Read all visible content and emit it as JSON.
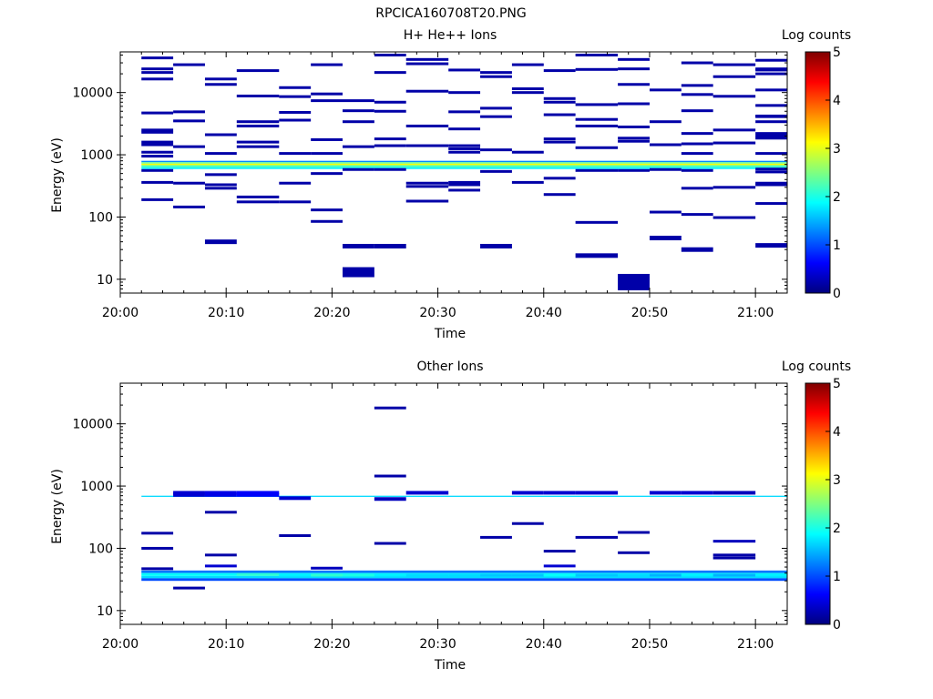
{
  "figure_title": "RPCICA160708T20.PNG",
  "chart_data": [
    {
      "type": "heatmap",
      "title": "H+ He++ Ions",
      "xlabel": "Time",
      "ylabel": "Energy (eV)",
      "x_ticks": [
        "20:00",
        "20:10",
        "20:20",
        "20:30",
        "20:40",
        "20:50",
        "21:00"
      ],
      "x_range": [
        "20:00",
        "21:03"
      ],
      "y_scale": "log",
      "y_ticks": [
        "10",
        "100",
        "1000",
        "10000"
      ],
      "y_range": [
        6,
        45000
      ],
      "colorbar": {
        "label": "Log counts",
        "ticks": [
          "0",
          "1",
          "2",
          "3",
          "4",
          "5"
        ],
        "range": [
          0,
          5
        ]
      },
      "scan_times": [
        "20:02",
        "20:05",
        "20:08",
        "20:11",
        "20:15",
        "20:18",
        "20:21",
        "20:24",
        "20:27",
        "20:31",
        "20:34",
        "20:37",
        "20:40",
        "20:43",
        "20:47",
        "20:50",
        "20:53",
        "20:56",
        "21:00"
      ],
      "bands": [
        {
          "energy": [
            760,
            800
          ],
          "level": 1.3
        },
        {
          "energy": [
            720,
            760
          ],
          "level": 2.4
        },
        {
          "energy": [
            690,
            720
          ],
          "level": 3.1
        },
        {
          "energy": [
            660,
            690
          ],
          "level": 2.6
        },
        {
          "energy": [
            620,
            660
          ],
          "level": 2.1
        },
        {
          "energy": [
            590,
            620
          ],
          "level": 1.8
        }
      ],
      "cells": [
        [
          0,
          36000,
          0.2
        ],
        [
          0,
          24000,
          0.2
        ],
        [
          0,
          21000,
          0.2
        ],
        [
          0,
          16500,
          0.2
        ],
        [
          0,
          4700,
          0.2
        ],
        [
          0,
          2500,
          0.2
        ],
        [
          0,
          2300,
          0.2
        ],
        [
          0,
          1600,
          0.2
        ],
        [
          0,
          1450,
          0.2
        ],
        [
          0,
          1100,
          0.2
        ],
        [
          0,
          950,
          0.2
        ],
        [
          0,
          560,
          0.2
        ],
        [
          0,
          360,
          0.2
        ],
        [
          0,
          190,
          0.2
        ],
        [
          1,
          28000,
          0.2
        ],
        [
          1,
          4900,
          0.2
        ],
        [
          1,
          3500,
          0.2
        ],
        [
          1,
          1350,
          0.2
        ],
        [
          1,
          350,
          0.2
        ],
        [
          1,
          145,
          0.2
        ],
        [
          2,
          16500,
          0.2
        ],
        [
          2,
          13500,
          0.2
        ],
        [
          2,
          2100,
          0.2
        ],
        [
          2,
          1050,
          0.2
        ],
        [
          2,
          480,
          0.2
        ],
        [
          2,
          330,
          0.2
        ],
        [
          2,
          290,
          0.2
        ],
        [
          2,
          40,
          0.2
        ],
        [
          3,
          22500,
          0.2
        ],
        [
          3,
          8800,
          0.2
        ],
        [
          3,
          3400,
          0.2
        ],
        [
          3,
          2900,
          0.2
        ],
        [
          3,
          1600,
          0.2
        ],
        [
          3,
          1350,
          0.2
        ],
        [
          3,
          210,
          0.2
        ],
        [
          3,
          175,
          0.2
        ],
        [
          4,
          12000,
          0.2
        ],
        [
          4,
          8600,
          0.2
        ],
        [
          4,
          4800,
          0.2
        ],
        [
          4,
          3600,
          0.2
        ],
        [
          4,
          1050,
          0.2
        ],
        [
          4,
          350,
          0.2
        ],
        [
          4,
          175,
          0.2
        ],
        [
          5,
          28000,
          0.2
        ],
        [
          5,
          9500,
          0.2
        ],
        [
          5,
          7400,
          0.2
        ],
        [
          5,
          1750,
          0.2
        ],
        [
          5,
          1050,
          0.2
        ],
        [
          5,
          500,
          0.2
        ],
        [
          5,
          130,
          0.2
        ],
        [
          5,
          85,
          0.2
        ],
        [
          6,
          7400,
          0.2
        ],
        [
          6,
          5100,
          0.2
        ],
        [
          6,
          3400,
          0.2
        ],
        [
          6,
          1350,
          0.2
        ],
        [
          6,
          580,
          0.2
        ],
        [
          6,
          34,
          0.2
        ],
        [
          6,
          13,
          0.2
        ],
        [
          7,
          40000,
          0.2
        ],
        [
          7,
          21000,
          0.2
        ],
        [
          7,
          7000,
          0.2
        ],
        [
          7,
          5000,
          0.2
        ],
        [
          7,
          1800,
          0.2
        ],
        [
          7,
          1400,
          0.2
        ],
        [
          7,
          580,
          0.2
        ],
        [
          7,
          34,
          0.2
        ],
        [
          8,
          34000,
          0.2
        ],
        [
          8,
          29000,
          0.2
        ],
        [
          8,
          10500,
          0.2
        ],
        [
          8,
          2900,
          0.2
        ],
        [
          8,
          1400,
          0.2
        ],
        [
          8,
          350,
          0.2
        ],
        [
          8,
          310,
          0.2
        ],
        [
          8,
          180,
          0.2
        ],
        [
          9,
          23000,
          0.2
        ],
        [
          9,
          10000,
          0.2
        ],
        [
          9,
          4900,
          0.2
        ],
        [
          9,
          2600,
          0.2
        ],
        [
          9,
          1400,
          0.2
        ],
        [
          9,
          1250,
          0.2
        ],
        [
          9,
          1100,
          0.2
        ],
        [
          9,
          360,
          0.2
        ],
        [
          9,
          330,
          0.2
        ],
        [
          9,
          270,
          0.2
        ],
        [
          10,
          21000,
          0.2
        ],
        [
          10,
          18000,
          0.2
        ],
        [
          10,
          5600,
          0.2
        ],
        [
          10,
          4100,
          0.2
        ],
        [
          10,
          1200,
          0.2
        ],
        [
          10,
          540,
          0.2
        ],
        [
          10,
          34,
          0.2
        ],
        [
          11,
          28000,
          0.2
        ],
        [
          11,
          11500,
          0.2
        ],
        [
          11,
          10000,
          0.2
        ],
        [
          11,
          1100,
          0.2
        ],
        [
          11,
          360,
          0.2
        ],
        [
          12,
          22500,
          0.2
        ],
        [
          12,
          8000,
          0.2
        ],
        [
          12,
          7000,
          0.2
        ],
        [
          12,
          4400,
          0.2
        ],
        [
          12,
          1800,
          0.2
        ],
        [
          12,
          1600,
          0.2
        ],
        [
          12,
          420,
          0.2
        ],
        [
          12,
          230,
          0.2
        ],
        [
          13,
          40000,
          0.2
        ],
        [
          13,
          23500,
          0.2
        ],
        [
          13,
          6400,
          0.2
        ],
        [
          13,
          3700,
          0.2
        ],
        [
          13,
          2900,
          0.2
        ],
        [
          13,
          1300,
          0.2
        ],
        [
          13,
          560,
          0.2
        ],
        [
          13,
          82,
          0.2
        ],
        [
          13,
          24,
          0.2
        ],
        [
          14,
          34000,
          0.2
        ],
        [
          14,
          24000,
          0.2
        ],
        [
          14,
          13500,
          0.2
        ],
        [
          14,
          6600,
          0.2
        ],
        [
          14,
          2800,
          0.2
        ],
        [
          14,
          1850,
          0.2
        ],
        [
          14,
          1650,
          0.2
        ],
        [
          14,
          560,
          0.2
        ],
        [
          14,
          9,
          0.2
        ],
        [
          15,
          11000,
          0.2
        ],
        [
          15,
          3400,
          0.2
        ],
        [
          15,
          1450,
          0.2
        ],
        [
          15,
          580,
          0.2
        ],
        [
          15,
          120,
          0.2
        ],
        [
          15,
          46,
          0.2
        ],
        [
          16,
          30000,
          0.2
        ],
        [
          16,
          13000,
          0.2
        ],
        [
          16,
          9300,
          0.2
        ],
        [
          16,
          5100,
          0.2
        ],
        [
          16,
          2200,
          0.2
        ],
        [
          16,
          1500,
          0.2
        ],
        [
          16,
          1050,
          0.2
        ],
        [
          16,
          560,
          0.2
        ],
        [
          16,
          290,
          0.2
        ],
        [
          16,
          110,
          0.2
        ],
        [
          16,
          30,
          0.2
        ],
        [
          17,
          28000,
          0.2
        ],
        [
          17,
          18000,
          0.2
        ],
        [
          17,
          8700,
          0.2
        ],
        [
          17,
          2500,
          0.2
        ],
        [
          17,
          1550,
          0.2
        ],
        [
          17,
          300,
          0.2
        ],
        [
          17,
          98,
          0.2
        ],
        [
          18,
          24000,
          0.2
        ],
        [
          18,
          6200,
          0.2
        ],
        [
          18,
          4100,
          0.2
        ],
        [
          18,
          2200,
          0.2
        ],
        [
          18,
          1850,
          0.2
        ],
        [
          18,
          590,
          0.2
        ],
        [
          18,
          350,
          0.2
        ],
        [
          18,
          33000,
          0.2
        ],
        [
          18,
          23000,
          0.2
        ],
        [
          18,
          20000,
          0.2
        ],
        [
          18,
          11000,
          0.2
        ],
        [
          18,
          4200,
          0.2
        ],
        [
          18,
          3400,
          0.2
        ],
        [
          18,
          2000,
          0.2
        ],
        [
          18,
          1050,
          0.2
        ],
        [
          18,
          530,
          0.2
        ],
        [
          18,
          330,
          0.2
        ],
        [
          18,
          165,
          0.2
        ],
        [
          18,
          35,
          0.2
        ]
      ]
    },
    {
      "type": "heatmap",
      "title": "Other Ions",
      "xlabel": "Time",
      "ylabel": "Energy (eV)",
      "x_ticks": [
        "20:00",
        "20:10",
        "20:20",
        "20:30",
        "20:40",
        "20:50",
        "21:00"
      ],
      "x_range": [
        "20:00",
        "21:03"
      ],
      "y_scale": "log",
      "y_ticks": [
        "10",
        "100",
        "1000",
        "10000"
      ],
      "y_range": [
        6,
        45000
      ],
      "colorbar": {
        "label": "Log counts",
        "ticks": [
          "0",
          "1",
          "2",
          "3",
          "4",
          "5"
        ],
        "range": [
          0,
          5
        ]
      },
      "scan_times": [
        "20:02",
        "20:05",
        "20:08",
        "20:11",
        "20:15",
        "20:18",
        "20:21",
        "20:24",
        "20:27",
        "20:31",
        "20:34",
        "20:37",
        "20:40",
        "20:43",
        "20:47",
        "20:50",
        "20:53",
        "20:56",
        "21:00"
      ],
      "bands": [
        {
          "energy": [
            670,
            700
          ],
          "level": 1.7
        },
        {
          "energy": [
            40,
            44
          ],
          "level": 1.2
        },
        {
          "energy": [
            36,
            40
          ],
          "level": 1.9
        },
        {
          "energy": [
            33,
            36
          ],
          "level": 1.7
        },
        {
          "energy": [
            30,
            33
          ],
          "level": 1.0
        }
      ],
      "cells": [
        [
          0,
          175,
          0.2
        ],
        [
          0,
          100,
          0.2
        ],
        [
          0,
          47,
          0.2
        ],
        [
          1,
          780,
          0.4
        ],
        [
          1,
          720,
          0.4
        ],
        [
          1,
          23,
          0.2
        ],
        [
          2,
          780,
          0.5
        ],
        [
          2,
          720,
          0.5
        ],
        [
          2,
          380,
          0.2
        ],
        [
          2,
          78,
          0.2
        ],
        [
          2,
          52,
          0.4
        ],
        [
          3,
          780,
          0.6
        ],
        [
          3,
          720,
          0.6
        ],
        [
          3,
          38,
          2.1
        ],
        [
          4,
          640,
          0.4
        ],
        [
          4,
          160,
          0.2
        ],
        [
          4,
          37,
          1.8
        ],
        [
          5,
          48,
          0.3
        ],
        [
          5,
          37,
          2.1
        ],
        [
          6,
          37,
          2.0
        ],
        [
          7,
          18000,
          0.2
        ],
        [
          7,
          1450,
          0.2
        ],
        [
          7,
          620,
          0.3
        ],
        [
          7,
          120,
          0.2
        ],
        [
          7,
          37,
          1.8
        ],
        [
          8,
          780,
          0.4
        ],
        [
          8,
          37,
          1.7
        ],
        [
          9,
          37,
          1.7
        ],
        [
          10,
          150,
          0.2
        ],
        [
          10,
          37,
          1.6
        ],
        [
          11,
          780,
          0.4
        ],
        [
          11,
          250,
          0.2
        ],
        [
          11,
          37,
          1.6
        ],
        [
          12,
          780,
          0.4
        ],
        [
          12,
          90,
          0.2
        ],
        [
          12,
          52,
          0.4
        ],
        [
          12,
          37,
          1.9
        ],
        [
          13,
          780,
          0.4
        ],
        [
          13,
          150,
          0.2
        ],
        [
          13,
          37,
          1.6
        ],
        [
          14,
          180,
          0.2
        ],
        [
          14,
          85,
          0.2
        ],
        [
          14,
          37,
          1.7
        ],
        [
          15,
          780,
          0.4
        ],
        [
          15,
          37,
          1.5
        ],
        [
          16,
          780,
          0.4
        ],
        [
          16,
          37,
          1.8
        ],
        [
          17,
          780,
          0.3
        ],
        [
          17,
          130,
          0.3
        ],
        [
          17,
          78,
          0.2
        ],
        [
          17,
          70,
          0.2
        ],
        [
          17,
          37,
          1.5
        ],
        [
          18,
          37,
          1.8
        ]
      ]
    }
  ]
}
